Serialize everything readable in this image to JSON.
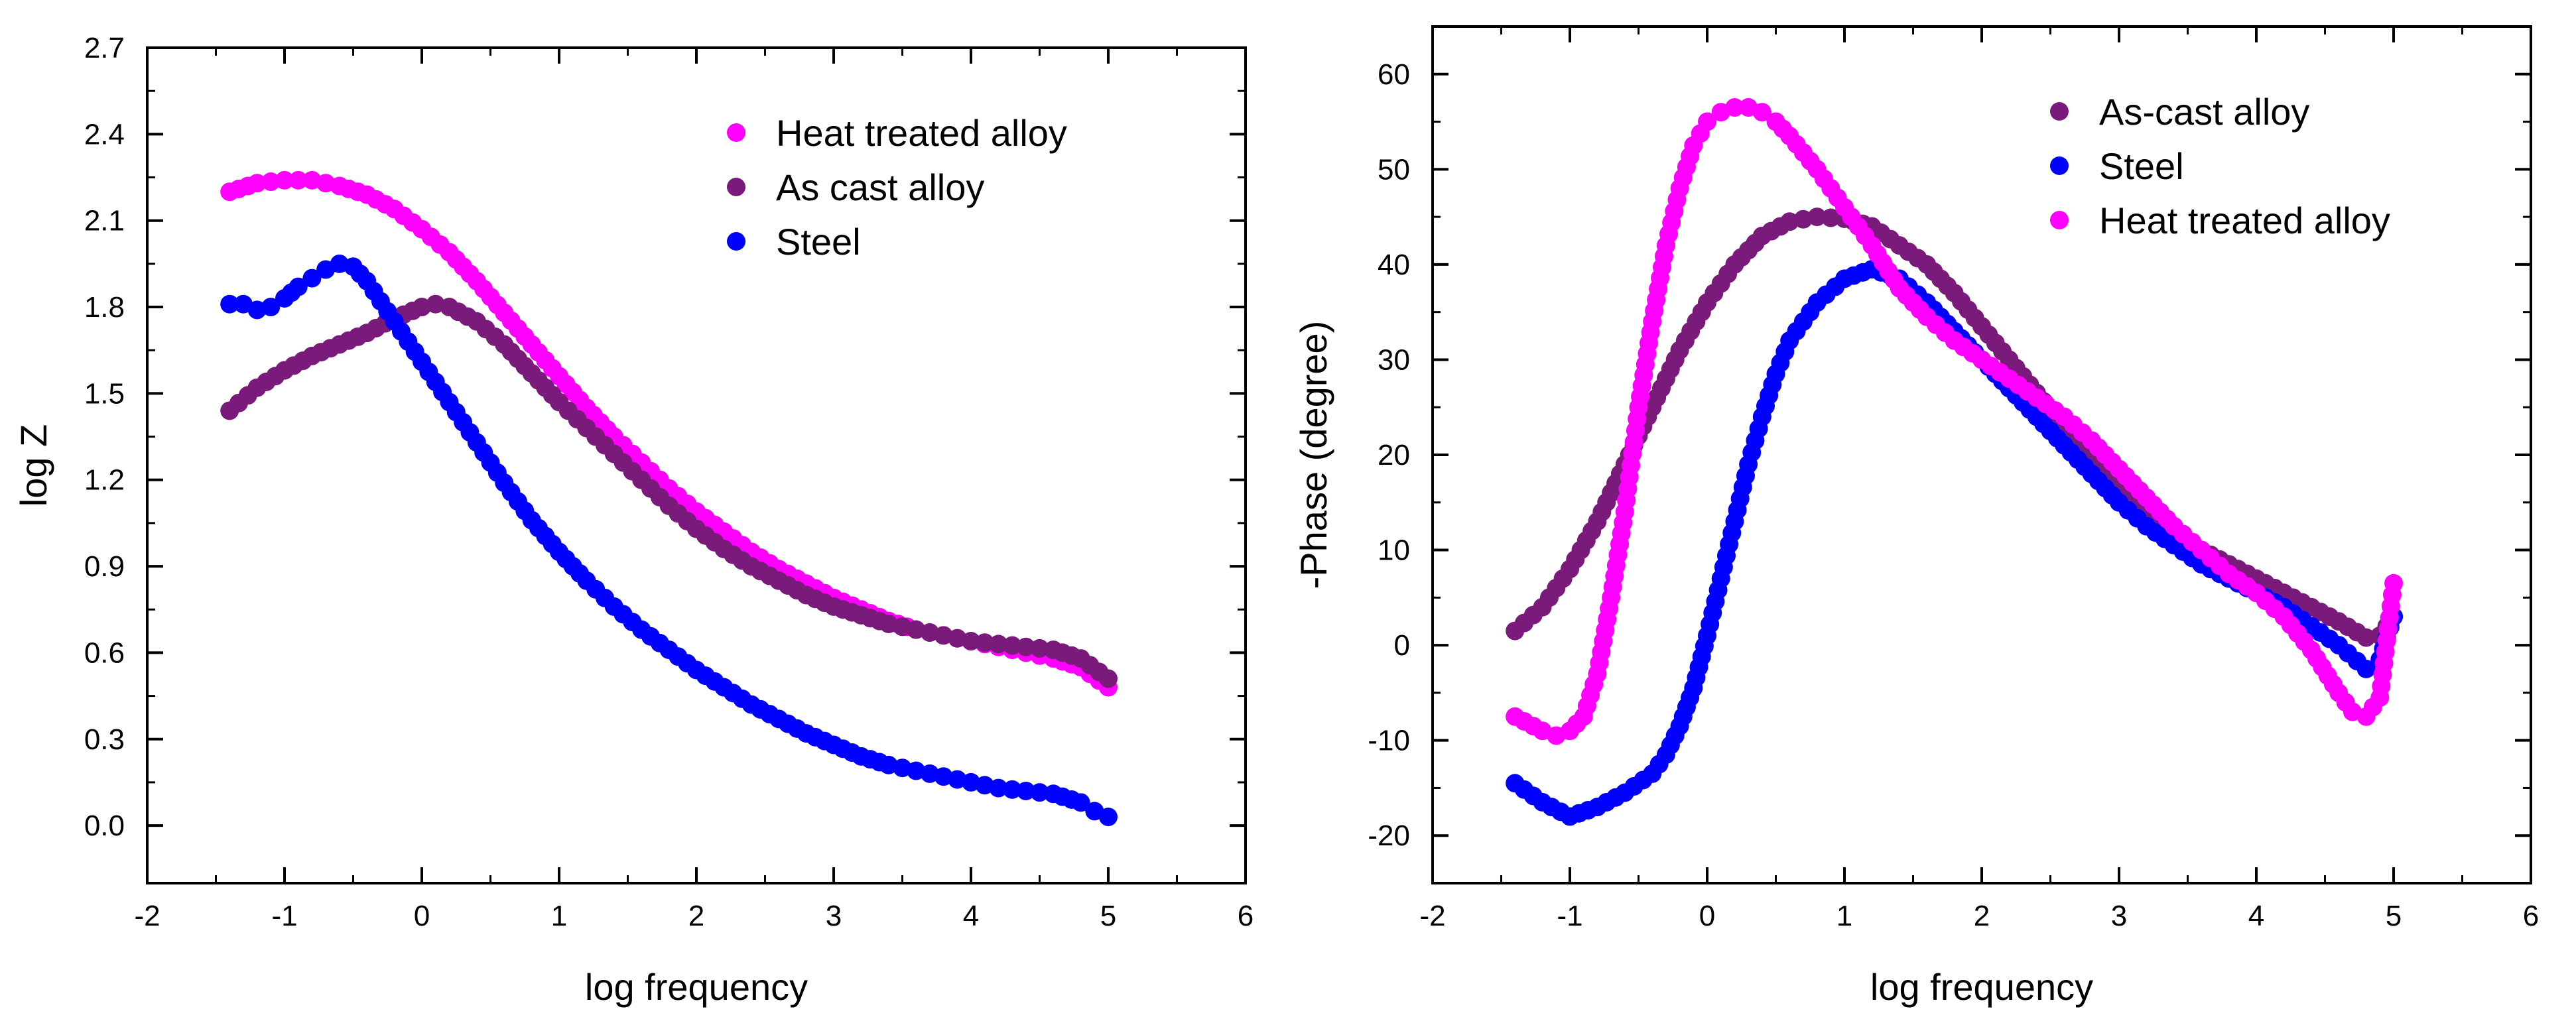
{
  "chart_data": [
    {
      "type": "scatter",
      "xlabel": "log frequency",
      "ylabel": "log Z",
      "xlim": [
        -2,
        6
      ],
      "ylim": [
        -0.2,
        2.7
      ],
      "xticks": [
        "-2",
        "-1",
        "0",
        "1",
        "2",
        "3",
        "4",
        "5",
        "6"
      ],
      "yticks": [
        "0.0",
        "0.3",
        "0.6",
        "0.9",
        "1.2",
        "1.5",
        "1.8",
        "2.1",
        "2.4",
        "2.7"
      ],
      "legend_position": "top-right",
      "series": [
        {
          "name": "Heat treated alloy",
          "color": "#ff00ff",
          "x": [
            -1.4,
            -1.2,
            -1.0,
            -0.8,
            -0.6,
            -0.4,
            -0.2,
            0.0,
            0.2,
            0.4,
            0.6,
            0.8,
            1.0,
            1.2,
            1.4,
            1.6,
            1.8,
            2.0,
            2.2,
            2.4,
            2.6,
            2.8,
            3.0,
            3.2,
            3.4,
            3.6,
            3.8,
            4.0,
            4.2,
            4.4,
            4.6,
            4.8,
            5.0
          ],
          "y": [
            2.2,
            2.23,
            2.24,
            2.24,
            2.22,
            2.19,
            2.14,
            2.07,
            1.99,
            1.89,
            1.78,
            1.67,
            1.56,
            1.45,
            1.35,
            1.26,
            1.17,
            1.09,
            1.02,
            0.95,
            0.89,
            0.84,
            0.79,
            0.75,
            0.71,
            0.68,
            0.66,
            0.64,
            0.62,
            0.6,
            0.58,
            0.55,
            0.48
          ]
        },
        {
          "name": "As cast alloy",
          "color": "#7a1a7a",
          "x": [
            -1.4,
            -1.2,
            -1.0,
            -0.8,
            -0.6,
            -0.4,
            -0.2,
            0.0,
            0.1,
            0.2,
            0.4,
            0.6,
            0.8,
            1.0,
            1.2,
            1.4,
            1.6,
            1.8,
            2.0,
            2.2,
            2.4,
            2.6,
            2.8,
            3.0,
            3.2,
            3.4,
            3.6,
            3.8,
            4.0,
            4.2,
            4.4,
            4.6,
            4.8,
            5.0
          ],
          "y": [
            1.44,
            1.52,
            1.58,
            1.63,
            1.67,
            1.71,
            1.76,
            1.8,
            1.81,
            1.8,
            1.75,
            1.67,
            1.57,
            1.47,
            1.38,
            1.29,
            1.2,
            1.11,
            1.03,
            0.96,
            0.9,
            0.85,
            0.8,
            0.76,
            0.73,
            0.7,
            0.68,
            0.66,
            0.64,
            0.63,
            0.62,
            0.61,
            0.58,
            0.51
          ]
        },
        {
          "name": "Steel",
          "color": "#0000ff",
          "x": [
            -1.4,
            -1.3,
            -1.2,
            -1.1,
            -1.0,
            -0.9,
            -0.8,
            -0.7,
            -0.6,
            -0.5,
            -0.4,
            -0.3,
            -0.2,
            0.0,
            0.2,
            0.4,
            0.6,
            0.8,
            1.0,
            1.2,
            1.4,
            1.6,
            1.8,
            2.0,
            2.2,
            2.4,
            2.6,
            2.8,
            3.0,
            3.2,
            3.4,
            3.6,
            3.8,
            4.0,
            4.2,
            4.4,
            4.6,
            4.8,
            4.9,
            5.0
          ],
          "y": [
            1.81,
            1.81,
            1.79,
            1.8,
            1.83,
            1.87,
            1.9,
            1.93,
            1.95,
            1.94,
            1.89,
            1.82,
            1.75,
            1.61,
            1.47,
            1.33,
            1.19,
            1.06,
            0.95,
            0.85,
            0.76,
            0.68,
            0.61,
            0.54,
            0.48,
            0.42,
            0.37,
            0.32,
            0.28,
            0.24,
            0.21,
            0.19,
            0.17,
            0.15,
            0.13,
            0.12,
            0.11,
            0.08,
            0.05,
            0.03
          ]
        }
      ]
    },
    {
      "type": "scatter",
      "xlabel": "log frequency",
      "ylabel": "-Phase (degree)",
      "xlim": [
        -2,
        6
      ],
      "ylim": [
        -25,
        65
      ],
      "xticks": [
        "-2",
        "-1",
        "0",
        "1",
        "2",
        "3",
        "4",
        "5",
        "6"
      ],
      "yticks": [
        "-20",
        "-10",
        "0",
        "10",
        "20",
        "30",
        "40",
        "50",
        "60"
      ],
      "legend_position": "top-right",
      "series": [
        {
          "name": "As-cast alloy",
          "color": "#7a1a7a",
          "x": [
            -1.4,
            -1.2,
            -1.0,
            -0.8,
            -0.6,
            -0.4,
            -0.2,
            0.0,
            0.2,
            0.4,
            0.6,
            0.8,
            1.0,
            1.2,
            1.4,
            1.6,
            1.8,
            2.0,
            2.2,
            2.4,
            2.6,
            2.8,
            3.0,
            3.2,
            3.4,
            3.6,
            3.8,
            4.0,
            4.2,
            4.4,
            4.6,
            4.8,
            4.9,
            5.0
          ],
          "y": [
            1.5,
            4.0,
            8.0,
            13.0,
            19.0,
            25.0,
            31.0,
            36.0,
            40.0,
            43.0,
            44.5,
            45.0,
            44.8,
            44.0,
            42.0,
            40.0,
            37.0,
            33.5,
            30.0,
            26.5,
            23.0,
            20.0,
            17.0,
            14.5,
            12.0,
            10.0,
            8.5,
            7.0,
            5.5,
            4.0,
            2.5,
            0.8,
            1.0,
            3.0
          ]
        },
        {
          "name": "Steel",
          "color": "#0000ff",
          "x": [
            -1.4,
            -1.2,
            -1.0,
            -0.8,
            -0.6,
            -0.4,
            -0.3,
            -0.2,
            -0.1,
            0.0,
            0.1,
            0.2,
            0.3,
            0.4,
            0.5,
            0.6,
            0.8,
            1.0,
            1.2,
            1.4,
            1.6,
            1.8,
            2.0,
            2.2,
            2.4,
            2.6,
            2.8,
            3.0,
            3.2,
            3.4,
            3.6,
            3.8,
            4.0,
            4.2,
            4.4,
            4.6,
            4.8,
            4.9,
            5.0
          ],
          "y": [
            -14.5,
            -16.5,
            -18.0,
            -17.0,
            -15.5,
            -13.5,
            -11.5,
            -8.5,
            -4.5,
            1.0,
            7.0,
            13.0,
            19.0,
            24.0,
            28.5,
            32.0,
            36.0,
            38.5,
            39.5,
            38.5,
            36.0,
            33.0,
            30.0,
            27.0,
            24.0,
            21.0,
            18.0,
            15.0,
            12.5,
            10.5,
            8.5,
            7.0,
            5.5,
            4.0,
            2.0,
            0.0,
            -2.5,
            -1.5,
            3.0
          ]
        },
        {
          "name": "Heat treated alloy",
          "color": "#ff00ff",
          "x": [
            -1.4,
            -1.2,
            -1.1,
            -1.0,
            -0.9,
            -0.8,
            -0.7,
            -0.6,
            -0.5,
            -0.4,
            -0.3,
            -0.2,
            -0.1,
            0.0,
            0.1,
            0.2,
            0.3,
            0.4,
            0.5,
            0.6,
            0.8,
            1.0,
            1.2,
            1.4,
            1.6,
            1.8,
            2.0,
            2.2,
            2.4,
            2.6,
            2.8,
            3.0,
            3.2,
            3.4,
            3.6,
            3.8,
            4.0,
            4.2,
            4.4,
            4.6,
            4.7,
            4.8,
            4.9,
            5.0
          ],
          "y": [
            -7.5,
            -9.0,
            -9.5,
            -9.0,
            -7.5,
            -3.0,
            5.0,
            14.0,
            25.0,
            34.0,
            42.0,
            48.0,
            52.5,
            55.0,
            56.0,
            56.5,
            56.5,
            56.0,
            55.0,
            53.5,
            50.0,
            46.0,
            42.0,
            37.5,
            34.5,
            32.0,
            30.0,
            28.0,
            26.0,
            24.0,
            21.5,
            18.5,
            15.5,
            12.5,
            10.0,
            7.5,
            5.5,
            3.0,
            -0.5,
            -5.0,
            -7.0,
            -7.5,
            -5.5,
            6.5
          ]
        }
      ]
    }
  ]
}
